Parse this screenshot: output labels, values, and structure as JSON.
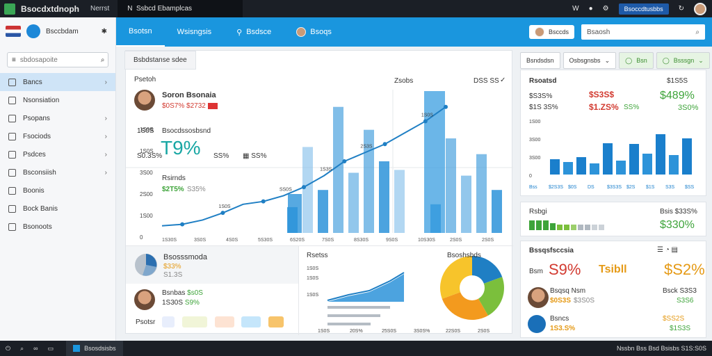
{
  "titlebar": {
    "app_title": "Bsocdxtdnoph",
    "menu": "Nerrst",
    "tab": "Ssbcd Ebamplcas",
    "action_button": "Bsoccdtusbbs"
  },
  "sidebar": {
    "brand_name": "Bsccbdam",
    "search_placeholder": "sbdosapoite",
    "items": [
      {
        "label": "Bancs",
        "active": true,
        "chevron": true
      },
      {
        "label": "Nsonsiation",
        "active": false,
        "chevron": false
      },
      {
        "label": "Psopans",
        "active": false,
        "chevron": true
      },
      {
        "label": "Fsociods",
        "active": false,
        "chevron": true
      },
      {
        "label": "Psdces",
        "active": false,
        "chevron": true
      },
      {
        "label": "Bsconsiish",
        "active": false,
        "chevron": true
      },
      {
        "label": "Boonis",
        "active": false,
        "chevron": false
      },
      {
        "label": "Bock Banis",
        "active": false,
        "chevron": false
      },
      {
        "label": "Bsonoots",
        "active": false,
        "chevron": false
      }
    ]
  },
  "header": {
    "tabs": [
      "Bsotsn",
      "Wsisngsis",
      "Bsdsce",
      "Bsoqs"
    ],
    "user_chip": "Bsccds",
    "search_placeholder": "Bsaosh"
  },
  "main": {
    "panel_tab": "Bsbdstanse sdee",
    "top_right_label": "Zsobs",
    "top_right_2": "DSS SS",
    "person_name": "Soron Bsonaia",
    "person_stats": "$0S7%  $2732",
    "section_label": "Psetoh",
    "metric_label": "Bsocdssosbsnd",
    "metric_big": "T9%",
    "metric_sub1": "1S0S",
    "metric_sub2": "SS%",
    "metric_sub3": "S0.3S%",
    "trend_label": "Rsirnds",
    "trend_value": "$2T5%",
    "trend_sub": "S35%"
  },
  "chart_data": {
    "type": "line",
    "y_ticks": [
      "1S0S",
      "1S0S",
      "3S00",
      "2S00",
      "1S00",
      "0"
    ],
    "x_ticks": [
      "1S30S",
      "3S0S",
      "4S0S",
      "5S30S",
      "6S20S",
      "7S0S",
      "8S30S",
      "9S0S",
      "10S30S",
      "2S0S",
      "2S0S"
    ],
    "line_values": [
      5,
      6,
      9,
      14,
      20,
      22,
      26,
      32,
      40,
      50,
      56,
      62,
      70,
      78,
      88
    ],
    "bar_values": [
      18,
      60,
      30,
      88,
      42,
      72,
      50,
      44,
      20,
      66,
      40,
      55,
      30,
      72
    ],
    "point_labels": [
      "1S0S",
      "SS0S",
      "1S3S",
      "2S3S",
      "1S0S"
    ]
  },
  "main_bottom": {
    "left_title": "Bsosssmoda",
    "left_value": "$33%",
    "left_sub": "S1.3S",
    "person2_name": "Bsnbas",
    "person2_value": "$s0S",
    "person2_sub": "1S30S",
    "person2_pct": "S9%",
    "footer_label": "Psotsr",
    "mini_chart_title": "Rsetss",
    "mini_y": [
      "1S0S",
      "1S0S",
      "1S0S"
    ],
    "mini_x": [
      "1S0S",
      "20S%",
      "25S0S",
      "3S0S%",
      "22S0S",
      "2S0S"
    ],
    "pie_title": "Bsoshsbds"
  },
  "right_panel_top": {
    "tabs": [
      "Bsndsdsn",
      "Osbsgnsbs",
      "Bsn",
      "Bsssgn"
    ],
    "title": "Rsoatsd",
    "top_right": "$1S5S",
    "row1_a": "$S3S%",
    "row1_b": "$S3S$",
    "row1_c": "$489%",
    "row2_a": "$1S 3S%",
    "row2_b": "$1.ZS%",
    "row2_c": "SS%",
    "row2_d": "3S0%",
    "y_ticks": [
      "1S00",
      "3S00",
      "3S00",
      "0"
    ],
    "bar_values": [
      22,
      18,
      25,
      16,
      45,
      20,
      44,
      30,
      58,
      28,
      52
    ],
    "x_labels": [
      "Bss",
      "$2S3S",
      "$0S",
      "DS",
      "$3S3S",
      "$2S",
      "$1S",
      "S3S",
      "$SS"
    ]
  },
  "right_panel_mid": {
    "title": "Rsbgi",
    "right_label": "Bsis $33S%",
    "value": "$330%"
  },
  "right_panel_bottom": {
    "title": "Bssqsfsccsia",
    "big1": "S9%",
    "big2": "$S2%",
    "label_left": "Bsm",
    "label_mid": "Tsibll",
    "row1_name": "Bsqsq Nsm",
    "row1_right": "Bsck S3S3",
    "row1_val": "$0S3S",
    "row1_sub": "$3S0S",
    "row1_pct": "S3S6",
    "row2_name": "Bsncs",
    "row2_val": "1S3.S%",
    "row2_right": "$SS2S",
    "row2_pct": "$1S3S"
  },
  "taskbar": {
    "task_label": "Bsosdsisbs",
    "clock": "Nssbn  Bss Bsd Bsisbs S1S:S0S"
  }
}
